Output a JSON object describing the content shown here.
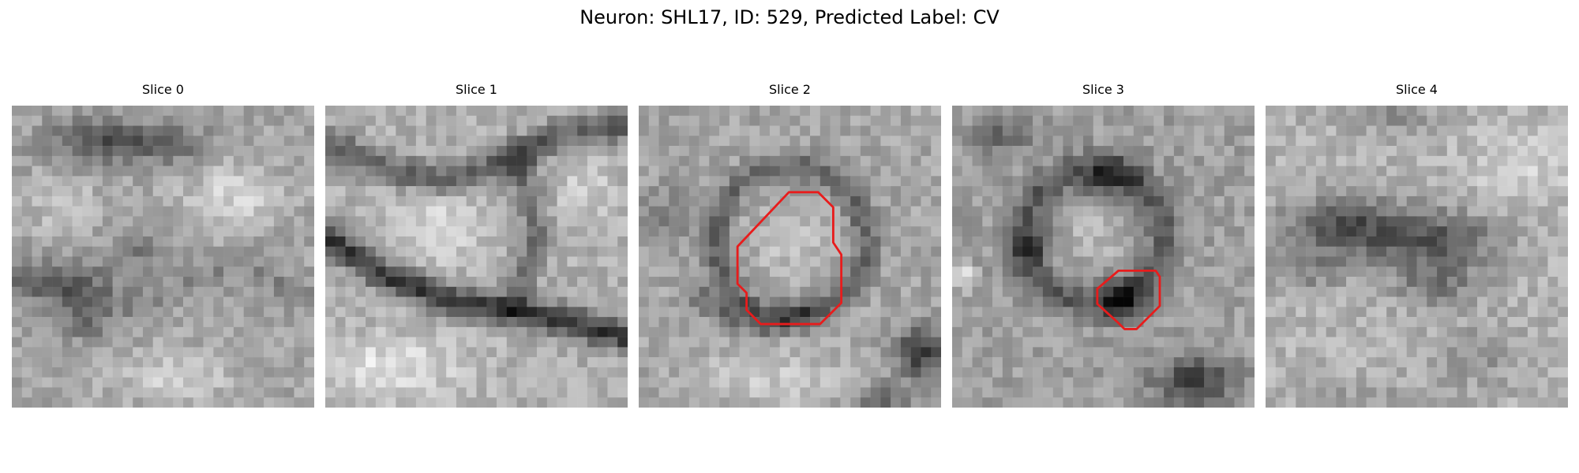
{
  "figure": {
    "title": "Neuron: SHL17, ID: 529, Predicted Label: CV"
  },
  "annotation_color": "#e81c1c",
  "panels": [
    {
      "title": "Slice 0",
      "seed": 11,
      "pattern": "slice0",
      "outline": false
    },
    {
      "title": "Slice 1",
      "seed": 23,
      "pattern": "slice1",
      "outline": false
    },
    {
      "title": "Slice 2",
      "seed": 37,
      "pattern": "slice2",
      "outline": true
    },
    {
      "title": "Slice 3",
      "seed": 51,
      "pattern": "slice3",
      "outline": true
    },
    {
      "title": "Slice 4",
      "seed": 67,
      "pattern": "slice4",
      "outline": false
    }
  ]
}
